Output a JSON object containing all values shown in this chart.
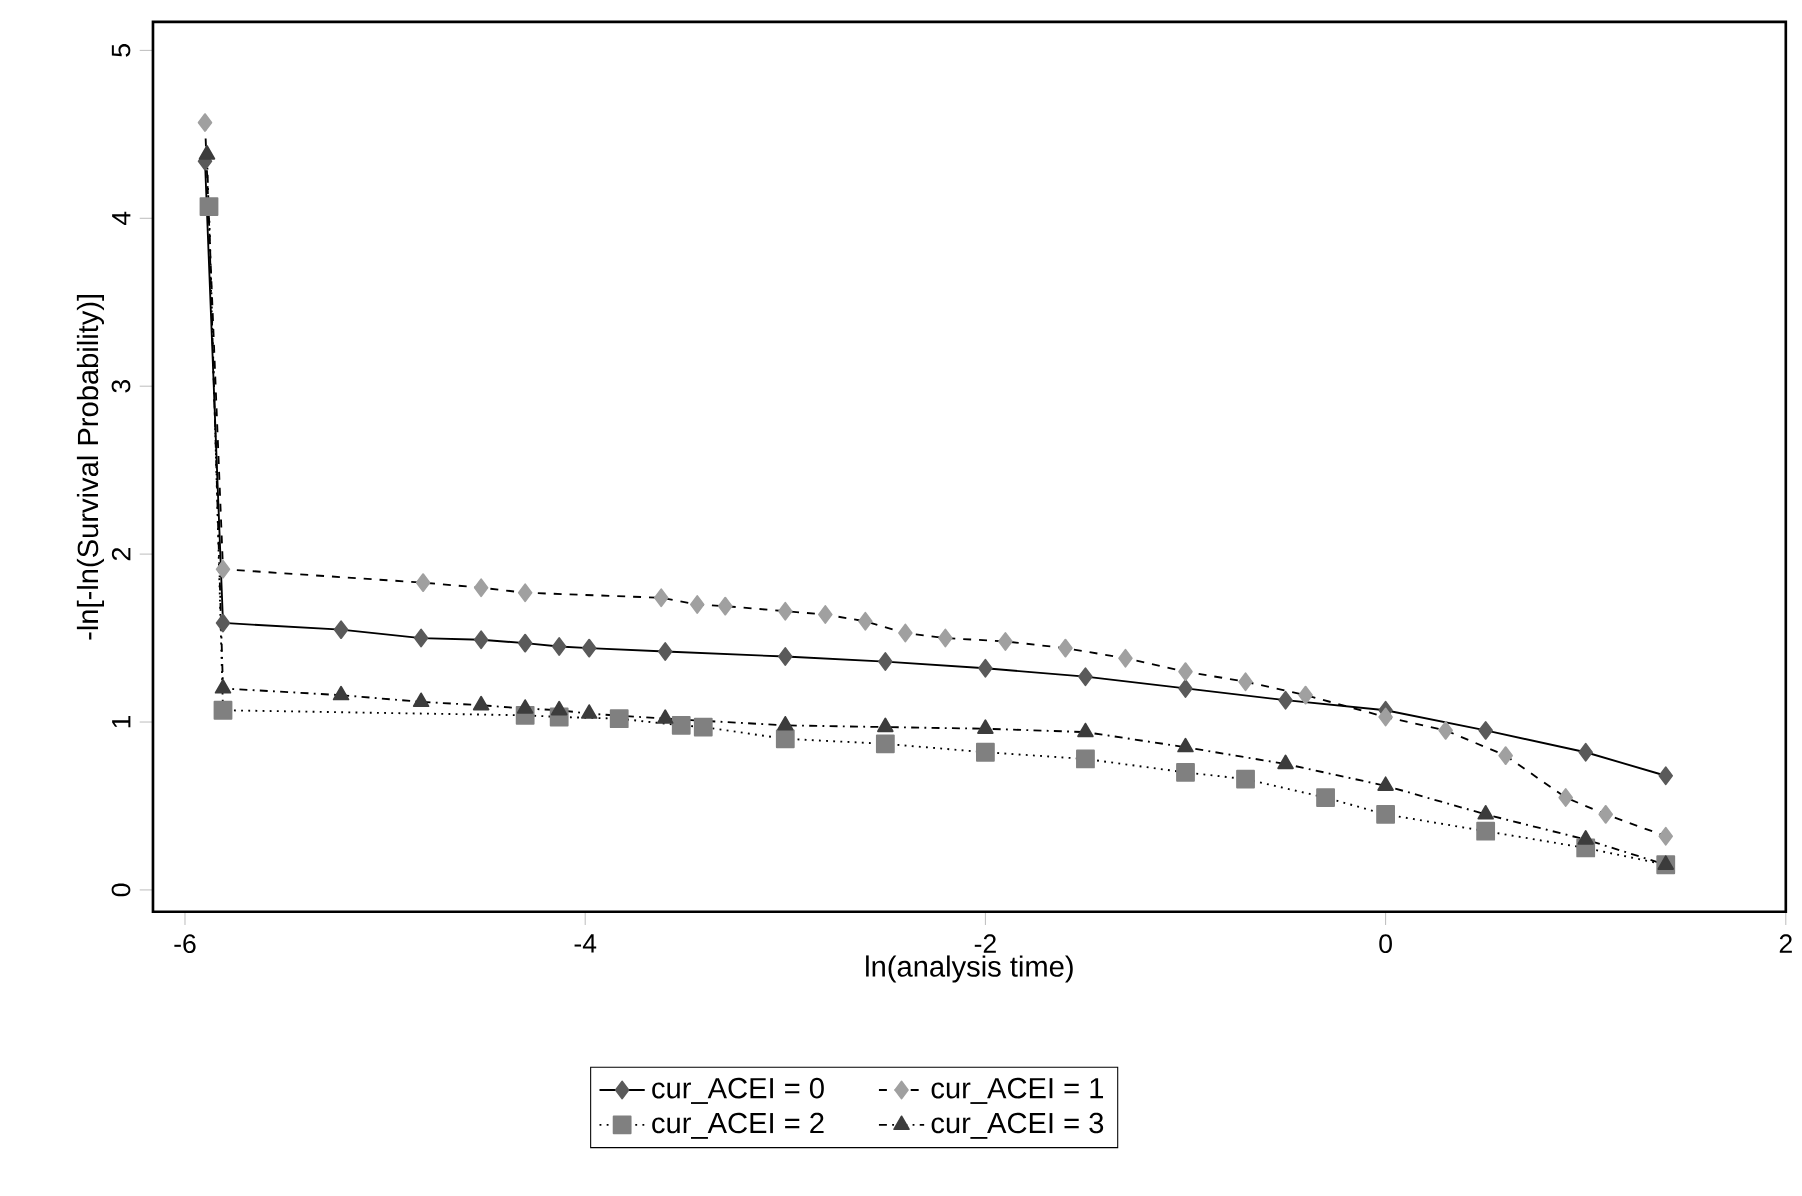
{
  "chart_data": {
    "type": "line",
    "xlabel": "ln(analysis time)",
    "ylabel": "-ln[-ln(Survival Probability)]",
    "xlim": [
      -6.16,
      2
    ],
    "ylim": [
      -0.13,
      5.17
    ],
    "xticks": [
      -6,
      -4,
      -2,
      0,
      2
    ],
    "yticks": [
      0,
      1,
      2,
      3,
      4,
      5
    ],
    "grid": false,
    "legend": "bottom",
    "series": [
      {
        "name": "cur_ACEI = 0",
        "color": "#5a5a5a",
        "marker": "diamond",
        "line_style": "solid",
        "x": [
          -5.9,
          -5.81,
          -5.22,
          -4.82,
          -4.52,
          -4.3,
          -4.13,
          -3.98,
          -3.6,
          -3.0,
          -2.5,
          -2.0,
          -1.5,
          -1.0,
          -0.5,
          0.0,
          0.5,
          1.0,
          1.4
        ],
        "values": [
          4.34,
          1.59,
          1.55,
          1.5,
          1.49,
          1.47,
          1.45,
          1.44,
          1.42,
          1.39,
          1.36,
          1.32,
          1.27,
          1.2,
          1.13,
          1.07,
          0.95,
          0.82,
          0.68
        ]
      },
      {
        "name": "cur_ACEI = 1",
        "color": "#a0a0a0",
        "marker": "diamond",
        "line_style": "dashed",
        "x": [
          -5.9,
          -5.81,
          -4.81,
          -4.52,
          -4.3,
          -3.62,
          -3.44,
          -3.3,
          -3.0,
          -2.8,
          -2.6,
          -2.4,
          -2.2,
          -1.9,
          -1.6,
          -1.3,
          -1.0,
          -0.7,
          -0.4,
          0.0,
          0.3,
          0.6,
          0.9,
          1.1,
          1.4
        ],
        "values": [
          4.57,
          1.91,
          1.83,
          1.8,
          1.77,
          1.74,
          1.7,
          1.69,
          1.66,
          1.64,
          1.6,
          1.53,
          1.5,
          1.48,
          1.44,
          1.38,
          1.3,
          1.24,
          1.16,
          1.03,
          0.95,
          0.8,
          0.55,
          0.45,
          0.32
        ]
      },
      {
        "name": "cur_ACEI = 2",
        "color": "#808080",
        "marker": "square",
        "line_style": "dotted",
        "x": [
          -5.88,
          -5.81,
          -4.3,
          -4.13,
          -3.83,
          -3.52,
          -3.41,
          -3.0,
          -2.5,
          -2.0,
          -1.5,
          -1.0,
          -0.7,
          -0.3,
          0.0,
          0.5,
          1.0,
          1.4
        ],
        "values": [
          4.07,
          1.07,
          1.04,
          1.03,
          1.02,
          0.98,
          0.97,
          0.9,
          0.87,
          0.82,
          0.78,
          0.7,
          0.66,
          0.55,
          0.45,
          0.35,
          0.25,
          0.15
        ]
      },
      {
        "name": "cur_ACEI = 3",
        "color": "#3c3c3c",
        "marker": "triangle",
        "line_style": "dashdot",
        "x": [
          -5.89,
          -5.81,
          -5.22,
          -4.82,
          -4.52,
          -4.3,
          -4.13,
          -3.98,
          -3.6,
          -3.0,
          -2.5,
          -2.0,
          -1.5,
          -1.0,
          -0.5,
          0.0,
          0.5,
          1.0,
          1.4
        ],
        "values": [
          4.38,
          1.2,
          1.16,
          1.12,
          1.1,
          1.08,
          1.07,
          1.05,
          1.02,
          0.98,
          0.97,
          0.96,
          0.94,
          0.85,
          0.75,
          0.62,
          0.45,
          0.3,
          0.15
        ]
      }
    ]
  }
}
